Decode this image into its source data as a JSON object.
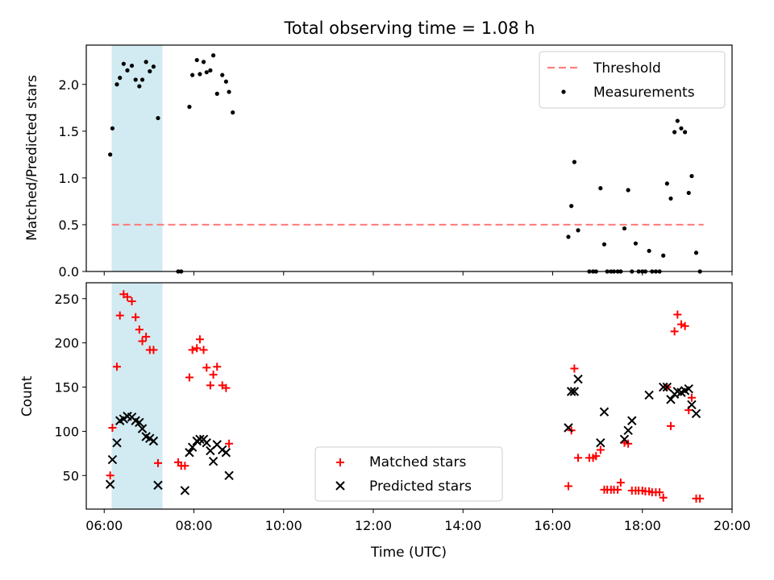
{
  "figure_title": "Total observing time = 1.08 h",
  "chart_data": [
    {
      "type": "scatter",
      "panel": "top",
      "title": "Total observing time = 1.08 h",
      "ylabel": "Matched/Predicted stars",
      "xlabel": "",
      "xlim": [
        "05:36",
        "20:00"
      ],
      "ylim": [
        0,
        2.42
      ],
      "yticks": [
        0.0,
        0.5,
        1.0,
        1.5,
        2.0
      ],
      "ytick_labels": [
        "0.0",
        "0.5",
        "1.0",
        "1.5",
        "2.0"
      ],
      "grid": false,
      "legend_position": "top-right",
      "shaded_span": {
        "start": "06:10",
        "end": "07:18",
        "color": "#add8e6"
      },
      "threshold": {
        "name": "Threshold",
        "value": 0.5,
        "x_start": "06:10",
        "x_end": "19:22",
        "color": "#ff8080",
        "style": "dashed"
      },
      "series": [
        {
          "name": "Measurements",
          "marker": "dot",
          "color": "#000000",
          "points": [
            [
              "06:08",
              1.25
            ],
            [
              "06:11",
              1.53
            ],
            [
              "06:17",
              2.0
            ],
            [
              "06:21",
              2.07
            ],
            [
              "06:26",
              2.22
            ],
            [
              "06:31",
              2.15
            ],
            [
              "06:37",
              2.2
            ],
            [
              "06:42",
              2.05
            ],
            [
              "06:47",
              1.98
            ],
            [
              "06:51",
              2.05
            ],
            [
              "06:56",
              2.24
            ],
            [
              "07:01",
              2.14
            ],
            [
              "07:06",
              2.19
            ],
            [
              "07:12",
              1.64
            ],
            [
              "07:39",
              0.0
            ],
            [
              "07:43",
              0.0
            ],
            [
              "07:54",
              1.76
            ],
            [
              "07:58",
              2.1
            ],
            [
              "08:04",
              2.26
            ],
            [
              "08:08",
              2.11
            ],
            [
              "08:13",
              2.24
            ],
            [
              "08:17",
              2.13
            ],
            [
              "08:22",
              2.15
            ],
            [
              "08:26",
              2.31
            ],
            [
              "08:31",
              1.9
            ],
            [
              "08:38",
              2.1
            ],
            [
              "08:43",
              2.03
            ],
            [
              "08:47",
              1.92
            ],
            [
              "08:52",
              1.7
            ],
            [
              "16:21",
              0.37
            ],
            [
              "16:25",
              0.7
            ],
            [
              "16:29",
              1.17
            ],
            [
              "16:34",
              0.44
            ],
            [
              "16:49",
              0.0
            ],
            [
              "16:54",
              0.0
            ],
            [
              "16:58",
              0.0
            ],
            [
              "17:04",
              0.89
            ],
            [
              "17:09",
              0.29
            ],
            [
              "17:13",
              0.0
            ],
            [
              "17:18",
              0.0
            ],
            [
              "17:22",
              0.0
            ],
            [
              "17:27",
              0.0
            ],
            [
              "17:31",
              0.0
            ],
            [
              "17:36",
              0.46
            ],
            [
              "17:41",
              0.87
            ],
            [
              "17:46",
              0.0
            ],
            [
              "17:51",
              0.3
            ],
            [
              "17:55",
              0.0
            ],
            [
              "18:00",
              0.0
            ],
            [
              "18:04",
              0.0
            ],
            [
              "18:09",
              0.22
            ],
            [
              "18:13",
              0.0
            ],
            [
              "18:18",
              0.0
            ],
            [
              "18:23",
              0.0
            ],
            [
              "18:28",
              0.17
            ],
            [
              "18:33",
              0.94
            ],
            [
              "18:38",
              0.78
            ],
            [
              "18:43",
              1.49
            ],
            [
              "18:47",
              1.61
            ],
            [
              "18:52",
              1.53
            ],
            [
              "18:57",
              1.49
            ],
            [
              "19:02",
              0.84
            ],
            [
              "19:06",
              1.02
            ],
            [
              "19:12",
              0.2
            ],
            [
              "19:17",
              0.0
            ]
          ]
        }
      ]
    },
    {
      "type": "scatter",
      "panel": "bottom",
      "title": "",
      "xlabel": "Time (UTC)",
      "ylabel": "Count",
      "xlim": [
        "05:36",
        "20:00"
      ],
      "xticks": [
        "06:00",
        "08:00",
        "10:00",
        "12:00",
        "14:00",
        "16:00",
        "18:00",
        "20:00"
      ],
      "ylim": [
        12,
        268
      ],
      "yticks": [
        50,
        100,
        150,
        200,
        250
      ],
      "ytick_labels": [
        "50",
        "100",
        "150",
        "200",
        "250"
      ],
      "grid": false,
      "legend_position": "bottom-center",
      "shaded_span": {
        "start": "06:10",
        "end": "07:18",
        "color": "#add8e6"
      },
      "series": [
        {
          "name": "Matched stars",
          "marker": "plus",
          "color": "#ff0000",
          "points": [
            [
              "06:08",
              50
            ],
            [
              "06:11",
              104
            ],
            [
              "06:17",
              173
            ],
            [
              "06:21",
              231
            ],
            [
              "06:26",
              255
            ],
            [
              "06:31",
              252
            ],
            [
              "06:37",
              247
            ],
            [
              "06:42",
              229
            ],
            [
              "06:47",
              215
            ],
            [
              "06:51",
              202
            ],
            [
              "06:56",
              207
            ],
            [
              "07:01",
              192
            ],
            [
              "07:06",
              192
            ],
            [
              "07:12",
              64
            ],
            [
              "07:39",
              65
            ],
            [
              "07:43",
              61
            ],
            [
              "07:48",
              61
            ],
            [
              "07:54",
              161
            ],
            [
              "07:58",
              192
            ],
            [
              "08:04",
              194
            ],
            [
              "08:08",
              204
            ],
            [
              "08:13",
              192
            ],
            [
              "08:17",
              172
            ],
            [
              "08:22",
              152
            ],
            [
              "08:26",
              164
            ],
            [
              "08:31",
              173
            ],
            [
              "08:38",
              152
            ],
            [
              "08:43",
              149
            ],
            [
              "08:47",
              86
            ],
            [
              "16:21",
              38
            ],
            [
              "16:25",
              101
            ],
            [
              "16:29",
              171
            ],
            [
              "16:34",
              70
            ],
            [
              "16:49",
              70
            ],
            [
              "16:54",
              70
            ],
            [
              "16:58",
              72
            ],
            [
              "17:04",
              79
            ],
            [
              "17:09",
              34
            ],
            [
              "17:13",
              34
            ],
            [
              "17:18",
              34
            ],
            [
              "17:22",
              34
            ],
            [
              "17:27",
              34
            ],
            [
              "17:31",
              42
            ],
            [
              "17:36",
              87
            ],
            [
              "17:41",
              86
            ],
            [
              "17:46",
              33
            ],
            [
              "17:51",
              33
            ],
            [
              "17:55",
              33
            ],
            [
              "18:00",
              33
            ],
            [
              "18:04",
              32
            ],
            [
              "18:09",
              32
            ],
            [
              "18:13",
              31
            ],
            [
              "18:18",
              31
            ],
            [
              "18:23",
              31
            ],
            [
              "18:28",
              25
            ],
            [
              "18:33",
              150
            ],
            [
              "18:38",
              106
            ],
            [
              "18:43",
              213
            ],
            [
              "18:47",
              232
            ],
            [
              "18:52",
              221
            ],
            [
              "18:57",
              219
            ],
            [
              "19:02",
              124
            ],
            [
              "19:06",
              138
            ],
            [
              "19:12",
              24
            ],
            [
              "19:17",
              24
            ]
          ]
        },
        {
          "name": "Predicted stars",
          "marker": "x",
          "color": "#000000",
          "points": [
            [
              "06:08",
              40
            ],
            [
              "06:11",
              68
            ],
            [
              "06:17",
              87
            ],
            [
              "06:21",
              112
            ],
            [
              "06:26",
              114
            ],
            [
              "06:31",
              117
            ],
            [
              "06:37",
              116
            ],
            [
              "06:42",
              112
            ],
            [
              "06:47",
              110
            ],
            [
              "06:51",
              103
            ],
            [
              "06:56",
              94
            ],
            [
              "07:01",
              92
            ],
            [
              "07:06",
              89
            ],
            [
              "07:12",
              39
            ],
            [
              "07:48",
              33
            ],
            [
              "07:54",
              76
            ],
            [
              "07:58",
              82
            ],
            [
              "08:04",
              89
            ],
            [
              "08:08",
              91
            ],
            [
              "08:13",
              91
            ],
            [
              "08:17",
              87
            ],
            [
              "08:22",
              78
            ],
            [
              "08:26",
              66
            ],
            [
              "08:31",
              85
            ],
            [
              "08:38",
              79
            ],
            [
              "08:43",
              76
            ],
            [
              "08:47",
              50
            ],
            [
              "16:21",
              104
            ],
            [
              "16:25",
              145
            ],
            [
              "16:29",
              145
            ],
            [
              "16:34",
              159
            ],
            [
              "17:04",
              87
            ],
            [
              "17:09",
              122
            ],
            [
              "17:36",
              91
            ],
            [
              "17:41",
              101
            ],
            [
              "17:46",
              112
            ],
            [
              "18:09",
              141
            ],
            [
              "18:28",
              150
            ],
            [
              "18:33",
              150
            ],
            [
              "18:38",
              136
            ],
            [
              "18:43",
              142
            ],
            [
              "18:47",
              145
            ],
            [
              "18:52",
              144
            ],
            [
              "18:57",
              146
            ],
            [
              "19:02",
              148
            ],
            [
              "19:06",
              130
            ],
            [
              "19:12",
              120
            ]
          ]
        }
      ]
    }
  ]
}
